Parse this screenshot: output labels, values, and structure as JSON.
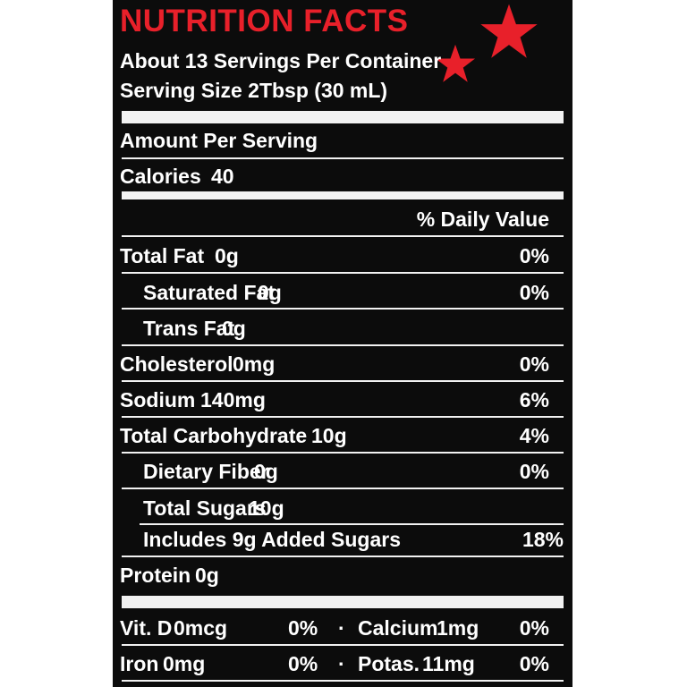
{
  "title": "NUTRITION FACTS",
  "servings_per_container": "About 13 Servings Per Container",
  "serving_size": "Serving Size 2Tbsp (30 mL)",
  "amount_per_serving": "Amount Per Serving",
  "calories": {
    "label": "Calories",
    "value": "40"
  },
  "daily_value_header": "% Daily Value",
  "nutrients": {
    "total_fat": {
      "label": "Total Fat",
      "amount": "0g",
      "dv": "0%"
    },
    "saturated_fat": {
      "label": "Saturated Fat",
      "amount": "0g",
      "dv": "0%"
    },
    "trans_fat": {
      "label": "Trans Fat",
      "amount": "0g"
    },
    "cholesterol": {
      "label": "Cholesterol",
      "amount": "0mg",
      "dv": "0%"
    },
    "sodium": {
      "label": "Sodium",
      "amount": "140mg",
      "dv": "6%"
    },
    "total_carbohydrate": {
      "label": "Total Carbohydrate",
      "amount": "10g",
      "dv": "4%"
    },
    "dietary_fiber": {
      "label": "Dietary Fiber",
      "amount": "0g",
      "dv": "0%"
    },
    "total_sugars": {
      "label": "Total Sugars",
      "amount": "10g"
    },
    "added_sugars": {
      "label": "Includes 9g Added Sugars",
      "dv": "18%"
    },
    "protein": {
      "label": "Protein",
      "amount": "0g"
    }
  },
  "vitamins": {
    "vit_d": {
      "label": "Vit. D",
      "amount": "0mcg",
      "dv": "0%"
    },
    "calcium": {
      "label": "Calcium",
      "amount": "1mg",
      "dv": "0%"
    },
    "iron": {
      "label": "Iron",
      "amount": "0mg",
      "dv": "0%"
    },
    "potassium": {
      "label": "Potas.",
      "amount": "11mg",
      "dv": "0%"
    },
    "bullet": "·"
  },
  "colors": {
    "background": "#0c0c0c",
    "text": "#ffffff",
    "accent": "#e8202a",
    "rules": "#f2f2f2"
  },
  "icons": [
    "star-icon",
    "star-icon"
  ]
}
